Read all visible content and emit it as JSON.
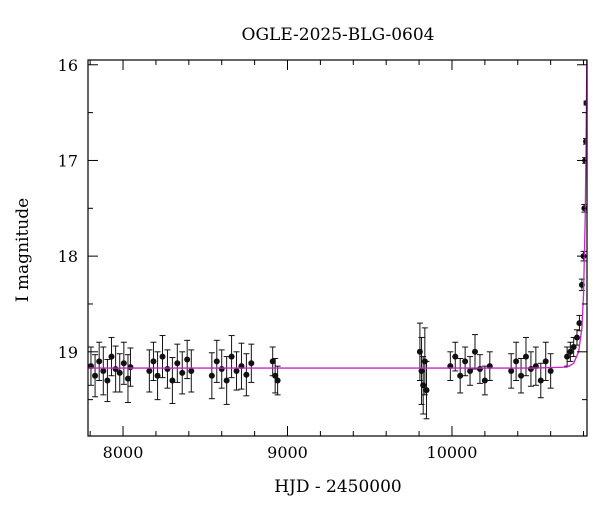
{
  "chart_data": {
    "type": "scatter",
    "title": "OGLE-2025-BLG-0604",
    "x_label": "HJD - 2450000",
    "y_label": "I magnitude",
    "color": "#111111",
    "x": [
      7805,
      7830,
      7855,
      7880,
      7905,
      7930,
      7955,
      7980,
      8005,
      8030,
      8045,
      8160,
      8185,
      8210,
      8240,
      8270,
      8300,
      8330,
      8360,
      8390,
      8415,
      8540,
      8570,
      8600,
      8630,
      8660,
      8690,
      8720,
      8750,
      8780,
      8910,
      8925,
      8940,
      9805,
      9815,
      9825,
      9835,
      9845,
      9990,
      10020,
      10050,
      10080,
      10110,
      10140,
      10170,
      10200,
      10230,
      10360,
      10390,
      10420,
      10450,
      10480,
      10510,
      10540,
      10570,
      10600,
      10700,
      10720,
      10740,
      10760,
      10775,
      10790,
      10800,
      10805,
      10810,
      10815,
      10818
    ],
    "y": [
      19.15,
      19.25,
      19.1,
      19.2,
      19.3,
      19.05,
      19.18,
      19.22,
      19.12,
      19.28,
      19.16,
      19.2,
      19.1,
      19.25,
      19.05,
      19.18,
      19.3,
      19.12,
      19.22,
      19.08,
      19.2,
      19.25,
      19.1,
      19.18,
      19.3,
      19.05,
      19.2,
      19.15,
      19.24,
      19.12,
      19.1,
      19.25,
      19.3,
      19.0,
      19.2,
      19.35,
      19.1,
      19.4,
      19.15,
      19.05,
      19.25,
      19.1,
      19.2,
      19.0,
      19.18,
      19.3,
      19.15,
      19.2,
      19.1,
      19.25,
      19.05,
      19.18,
      19.15,
      19.3,
      19.1,
      19.2,
      19.05,
      19.0,
      18.95,
      18.85,
      18.7,
      18.3,
      18.0,
      17.5,
      17.0,
      16.8,
      16.4
    ],
    "errors": [
      0.2,
      0.22,
      0.2,
      0.25,
      0.22,
      0.2,
      0.24,
      0.2,
      0.22,
      0.25,
      0.2,
      0.22,
      0.2,
      0.25,
      0.22,
      0.2,
      0.24,
      0.2,
      0.22,
      0.2,
      0.22,
      0.24,
      0.22,
      0.2,
      0.25,
      0.22,
      0.2,
      0.24,
      0.22,
      0.2,
      0.15,
      0.18,
      0.15,
      0.3,
      0.35,
      0.3,
      0.35,
      0.3,
      0.15,
      0.15,
      0.18,
      0.15,
      0.15,
      0.18,
      0.15,
      0.15,
      0.15,
      0.18,
      0.2,
      0.18,
      0.2,
      0.18,
      0.2,
      0.18,
      0.2,
      0.18,
      0.1,
      0.1,
      0.1,
      0.08,
      0.08,
      0.06,
      0.05,
      0.04,
      0.03,
      0.03,
      0.02
    ],
    "model": {
      "color": "#cc22cc",
      "x": [
        7787,
        8500,
        9500,
        10500,
        10700,
        10740,
        10770,
        10790,
        10800,
        10810,
        10815,
        10818,
        10820
      ],
      "y": [
        19.17,
        19.17,
        19.17,
        19.17,
        19.16,
        19.12,
        19.0,
        18.75,
        18.4,
        17.6,
        16.9,
        16.3,
        15.95
      ]
    },
    "xlim": [
      7787,
      10821
    ],
    "ylim": [
      19.88,
      15.95
    ],
    "xticks": [
      8000,
      9000,
      10000
    ],
    "yticks": [
      16,
      17,
      18,
      19
    ],
    "xticks_minor": [
      7800,
      8200,
      8400,
      8600,
      8800,
      9200,
      9400,
      9600,
      9800,
      10200,
      10400,
      10600,
      10800
    ],
    "yticks_minor": [
      16.5,
      17.5,
      18.5,
      19.5
    ],
    "ticks_inward": true
  }
}
